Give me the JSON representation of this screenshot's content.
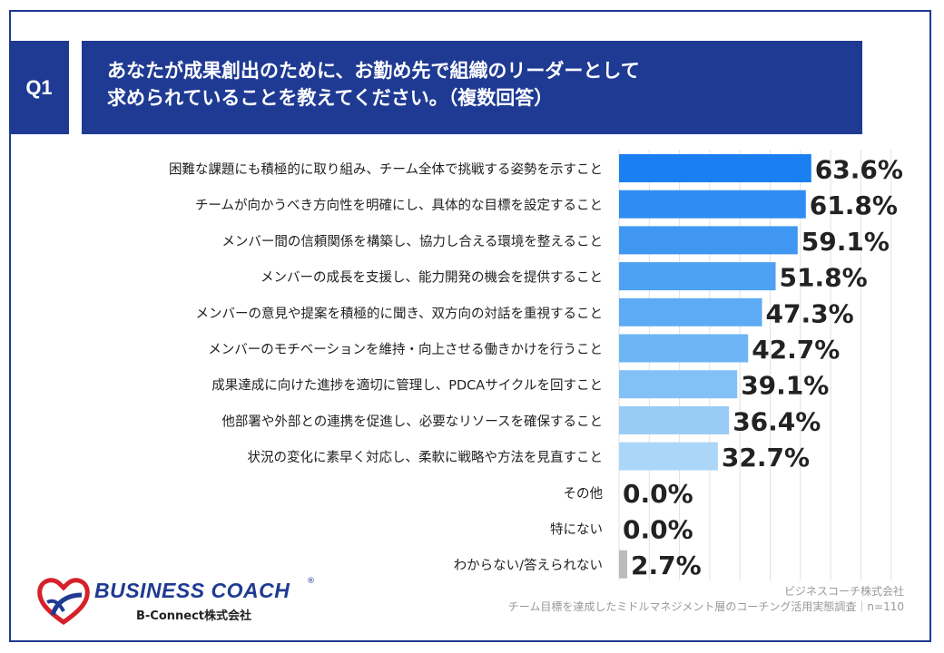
{
  "question": {
    "label": "Q1",
    "title_line1": "あなたが成果創出のために、お勤め先で組織のリーダーとして",
    "title_line2": "求められていることを教えてください。（複数回答）"
  },
  "chart_data": {
    "type": "bar",
    "orientation": "horizontal",
    "unit": "%",
    "xlim": [
      0,
      100
    ],
    "grid": true,
    "categories": [
      "困難な課題にも積極的に取り組み、チーム全体で挑戦する姿勢を示すこと",
      "チームが向かうべき方向性を明確にし、具体的な目標を設定すること",
      "メンバー間の信頼関係を構築し、協力し合える環境を整えること",
      "メンバーの成長を支援し、能力開発の機会を提供すること",
      "メンバーの意見や提案を積極的に聞き、双方向の対話を重視すること",
      "メンバーのモチベーションを維持・向上させる働きかけを行うこと",
      "成果達成に向けた進捗を適切に管理し、PDCAサイクルを回すこと",
      "他部署や外部との連携を促進し、必要なリソースを確保すること",
      "状況の変化に素早く対応し、柔軟に戦略や方法を見直すこと",
      "その他",
      "特にない",
      "わからない/答えられない"
    ],
    "values": [
      63.6,
      61.8,
      59.1,
      51.8,
      47.3,
      42.7,
      39.1,
      36.4,
      32.7,
      0.0,
      0.0,
      2.7
    ],
    "value_labels": [
      "63.6%",
      "61.8%",
      "59.1%",
      "51.8%",
      "47.3%",
      "42.7%",
      "39.1%",
      "36.4%",
      "32.7%",
      "0.0%",
      "0.0%",
      "2.7%"
    ],
    "bar_colors": [
      "#1a7ff0",
      "#2f8df2",
      "#3f97f2",
      "#4ea1f3",
      "#5dabf4",
      "#6db5f5",
      "#82c1f6",
      "#98ccf7",
      "#acd6f8",
      "#bbbbbb",
      "#bbbbbb",
      "#bbbbbb"
    ]
  },
  "source": {
    "company": "ビジネスコーチ株式会社",
    "survey": "チーム目標を達成したミドルマネジメント層のコーチング活用実態調査｜n=110"
  },
  "logo": {
    "name": "BUSINESS COACH",
    "registered": "®",
    "sub": "B-Connect株式会社"
  }
}
